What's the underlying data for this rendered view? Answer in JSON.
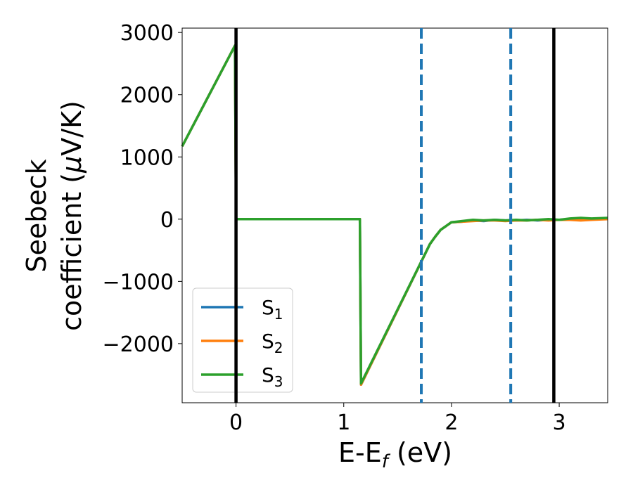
{
  "chart_data": {
    "type": "line",
    "xlabel": {
      "main": "E-E",
      "sub": "f",
      "tail": " (eV)"
    },
    "ylabel": {
      "line1": "Seebeck",
      "line2_prefix": "coefficient  (",
      "line2_mu": "μ",
      "line2_suffix": "V/K)"
    },
    "xlim": [
      -0.5,
      3.45
    ],
    "ylim": [
      -2950,
      3070
    ],
    "xticks": [
      0,
      1,
      2,
      3
    ],
    "xtick_labels": [
      "0",
      "1",
      "2",
      "3"
    ],
    "yticks": [
      3000,
      2000,
      1000,
      0,
      -1000,
      -2000
    ],
    "ytick_labels": [
      "3000",
      "2000",
      "1000",
      "0",
      "−1000",
      "−2000"
    ],
    "grid": false,
    "legend_position": "lower-left",
    "vlines": [
      {
        "x": 0.0,
        "style": "solid",
        "color": "#000000"
      },
      {
        "x": 2.95,
        "style": "solid",
        "color": "#000000"
      },
      {
        "x": 1.72,
        "style": "dashed",
        "color": "#1f77b4"
      },
      {
        "x": 2.55,
        "style": "dashed",
        "color": "#1f77b4"
      }
    ],
    "series": [
      {
        "name": "S",
        "sub": "1",
        "color": "#1f77b4",
        "x": [
          -0.5,
          -0.01,
          0.0,
          0.01,
          1.15,
          1.16,
          1.8,
          1.85,
          1.9,
          2.0,
          2.1,
          2.2,
          2.3,
          2.4,
          2.5,
          2.6,
          2.7,
          2.8,
          2.9,
          3.0,
          3.1,
          3.2,
          3.3,
          3.45
        ],
        "y": [
          1170,
          2790,
          0,
          0,
          0,
          -2660,
          -400,
          -280,
          -170,
          -50,
          -40,
          -20,
          -30,
          -10,
          -20,
          -20,
          -10,
          -20,
          -10,
          -10,
          0,
          10,
          0,
          10
        ]
      },
      {
        "name": "S",
        "sub": "2",
        "color": "#ff7f0e",
        "x": [
          -0.5,
          -0.01,
          0.0,
          0.01,
          1.15,
          1.16,
          1.8,
          1.85,
          1.9,
          2.0,
          2.1,
          2.2,
          2.3,
          2.4,
          2.5,
          2.6,
          2.7,
          2.8,
          2.9,
          3.0,
          3.1,
          3.2,
          3.3,
          3.45
        ],
        "y": [
          1170,
          2790,
          0,
          0,
          0,
          -2660,
          -400,
          -280,
          -170,
          -50,
          -40,
          -30,
          -20,
          -20,
          -30,
          -20,
          -20,
          -10,
          -20,
          -10,
          -10,
          -20,
          -10,
          0
        ]
      },
      {
        "name": "S",
        "sub": "3",
        "color": "#2ca02c",
        "x": [
          -0.5,
          -0.01,
          0.0,
          0.01,
          1.15,
          1.16,
          1.8,
          1.85,
          1.9,
          2.0,
          2.1,
          2.2,
          2.3,
          2.4,
          2.5,
          2.6,
          2.7,
          2.8,
          2.9,
          3.0,
          3.1,
          3.2,
          3.3,
          3.45
        ],
        "y": [
          1170,
          2790,
          0,
          0,
          0,
          -2640,
          -400,
          -280,
          -170,
          -50,
          -30,
          -10,
          -20,
          -10,
          -20,
          -10,
          -20,
          -10,
          0,
          -10,
          10,
          20,
          10,
          20
        ]
      }
    ]
  }
}
